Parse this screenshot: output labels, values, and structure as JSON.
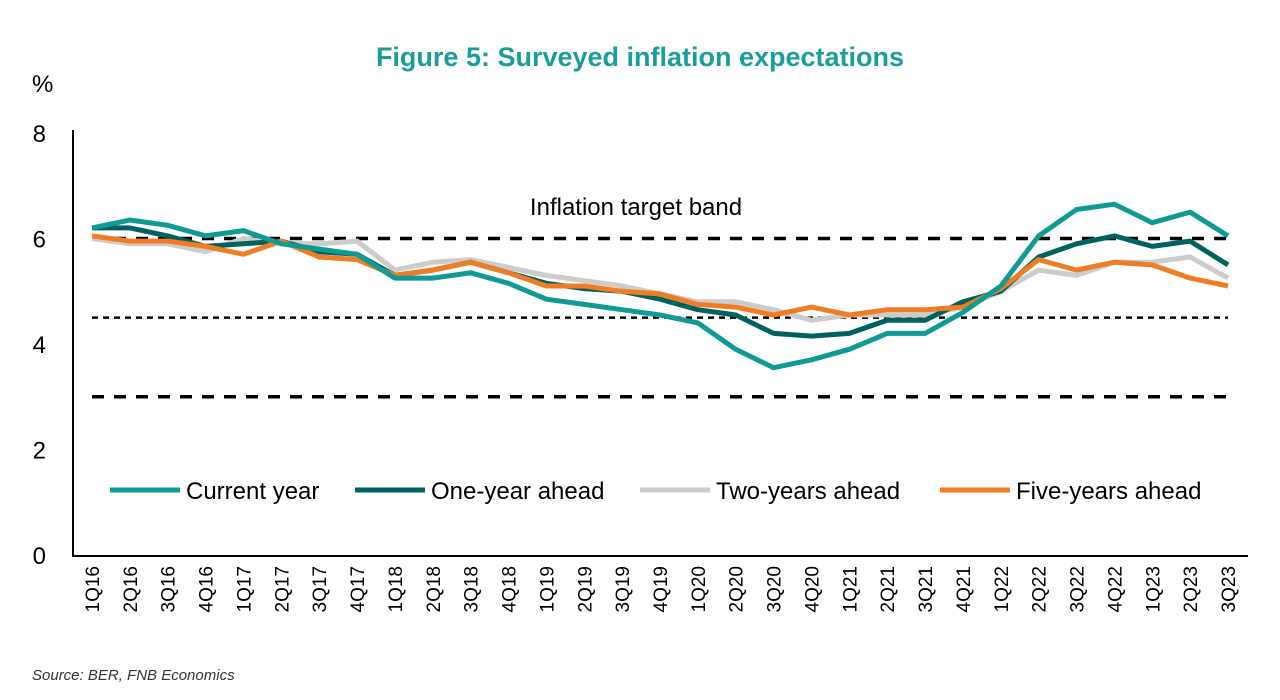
{
  "chart_data": {
    "type": "line",
    "title": "Figure 5: Surveyed inflation expectations",
    "ylabel": "%",
    "ylim": [
      0,
      8
    ],
    "yticks": [
      0,
      2,
      4,
      6,
      8
    ],
    "grid": false,
    "legend_placement": "bottom-inside",
    "source": "Source: BER, FNB Economics",
    "annotation": "Inflation target band",
    "reference_lines": [
      {
        "value": 6,
        "style": "dashed"
      },
      {
        "value": 4.5,
        "style": "dotted"
      },
      {
        "value": 3,
        "style": "dashed"
      }
    ],
    "categories": [
      "1Q16",
      "2Q16",
      "3Q16",
      "4Q16",
      "1Q17",
      "2Q17",
      "3Q17",
      "4Q17",
      "1Q18",
      "2Q18",
      "3Q18",
      "4Q18",
      "1Q19",
      "2Q19",
      "3Q19",
      "4Q19",
      "1Q20",
      "2Q20",
      "3Q20",
      "4Q20",
      "1Q21",
      "2Q21",
      "3Q21",
      "4Q21",
      "1Q22",
      "2Q22",
      "3Q22",
      "4Q22",
      "1Q23",
      "2Q23",
      "3Q23"
    ],
    "series": [
      {
        "name": "Two-years ahead",
        "color": "#cccccc",
        "values": [
          6.0,
          5.9,
          5.9,
          5.75,
          6.0,
          5.9,
          5.9,
          5.95,
          5.4,
          5.55,
          5.6,
          5.45,
          5.3,
          5.2,
          5.1,
          4.95,
          4.8,
          4.8,
          4.65,
          4.45,
          4.55,
          4.55,
          4.55,
          4.7,
          5.0,
          5.4,
          5.3,
          5.55,
          5.55,
          5.65,
          5.25
        ]
      },
      {
        "name": "One-year ahead",
        "color": "#00625f",
        "values": [
          6.2,
          6.2,
          6.05,
          5.85,
          5.9,
          5.95,
          5.75,
          5.7,
          5.3,
          5.4,
          5.55,
          5.35,
          5.15,
          5.05,
          5.0,
          4.85,
          4.65,
          4.55,
          4.2,
          4.15,
          4.2,
          4.45,
          4.45,
          4.8,
          5.0,
          5.65,
          5.9,
          6.05,
          5.85,
          5.95,
          5.5
        ]
      },
      {
        "name": "Five-years ahead",
        "color": "#f07d24",
        "values": [
          6.05,
          5.95,
          5.95,
          5.85,
          5.7,
          5.95,
          5.65,
          5.6,
          5.3,
          5.4,
          5.55,
          5.35,
          5.1,
          5.1,
          5.0,
          4.95,
          4.75,
          4.7,
          4.55,
          4.7,
          4.55,
          4.65,
          4.65,
          4.7,
          5.05,
          5.6,
          5.4,
          5.55,
          5.5,
          5.25,
          5.1
        ]
      },
      {
        "name": "Current year",
        "color": "#0f9a96",
        "values": [
          6.2,
          6.35,
          6.25,
          6.05,
          6.15,
          5.9,
          5.8,
          5.7,
          5.25,
          5.25,
          5.35,
          5.15,
          4.85,
          4.75,
          4.65,
          4.55,
          4.4,
          3.9,
          3.55,
          3.7,
          3.9,
          4.2,
          4.2,
          4.6,
          5.1,
          6.05,
          6.55,
          6.65,
          6.3,
          6.5,
          6.05
        ]
      }
    ],
    "legend": [
      {
        "name": "Current year",
        "color": "#0f9a96"
      },
      {
        "name": "One-year ahead",
        "color": "#00625f"
      },
      {
        "name": "Two-years ahead",
        "color": "#cccccc"
      },
      {
        "name": "Five-years ahead",
        "color": "#f07d24"
      }
    ]
  }
}
